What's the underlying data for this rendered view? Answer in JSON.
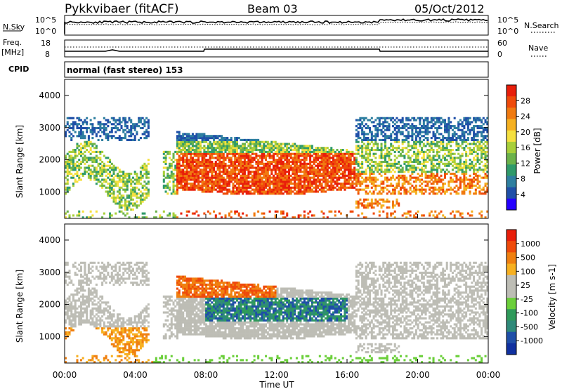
{
  "header": {
    "station": "Pykkvibaer (fitACF)",
    "beam": "Beam 03",
    "date": "05/Oct/2012"
  },
  "noise_panel": {
    "left_label": "N.Sky",
    "right_label": "N.Search",
    "left_ticks": [
      "10^5",
      "10^0"
    ],
    "right_ticks": [
      "10^5",
      "10^0"
    ]
  },
  "freq_panel": {
    "left_label_1": "Freq.",
    "left_label_2": "[MHz]",
    "right_label": "Nave",
    "left_ticks": [
      "18",
      "8"
    ],
    "right_ticks": [
      "60",
      "0"
    ]
  },
  "cpid_panel": {
    "label": "CPID",
    "text": "normal (fast stereo) 153"
  },
  "chart_data": [
    {
      "type": "heatmap",
      "name": "power",
      "ylabel": "Slant Range [km]",
      "ylim": [
        180,
        4500
      ],
      "y_ticks": [
        1000,
        2000,
        3000,
        4000
      ],
      "xlim_hours": [
        0,
        24
      ],
      "colorbar": {
        "label": "Power [dB]",
        "ticks": [
          "28",
          "24",
          "20",
          "16",
          "12",
          "8",
          "4"
        ],
        "colors": [
          "#2400ff",
          "#1f4fa8",
          "#2e7fa0",
          "#2f9a6a",
          "#6bb24a",
          "#a8cf3a",
          "#f5e040",
          "#f5b020",
          "#f07a10",
          "#ef4a0a",
          "#e81e0a"
        ]
      }
    },
    {
      "type": "heatmap",
      "name": "velocity",
      "ylabel": "Slant Range [km]",
      "ylim": [
        180,
        4500
      ],
      "y_ticks": [
        1000,
        2000,
        3000,
        4000
      ],
      "xlim_hours": [
        0,
        24
      ],
      "colorbar": {
        "label": "Velocity [m s-1]",
        "ticks": [
          "1000",
          "500",
          "100",
          "25",
          "-25",
          "-100",
          "-500",
          "-1000"
        ],
        "colors": [
          "#1030a0",
          "#1f4fa8",
          "#2f8a7a",
          "#2f9a5a",
          "#6bcf3a",
          "#bdbdb5",
          "#bdbdb5",
          "#f7b020",
          "#f08010",
          "#ef4a0a",
          "#e81e0a"
        ]
      }
    }
  ],
  "x_axis": {
    "ticks": [
      "00:00",
      "04:00",
      "08:00",
      "12:00",
      "16:00",
      "20:00",
      "00:00"
    ],
    "label": "Time UT"
  }
}
